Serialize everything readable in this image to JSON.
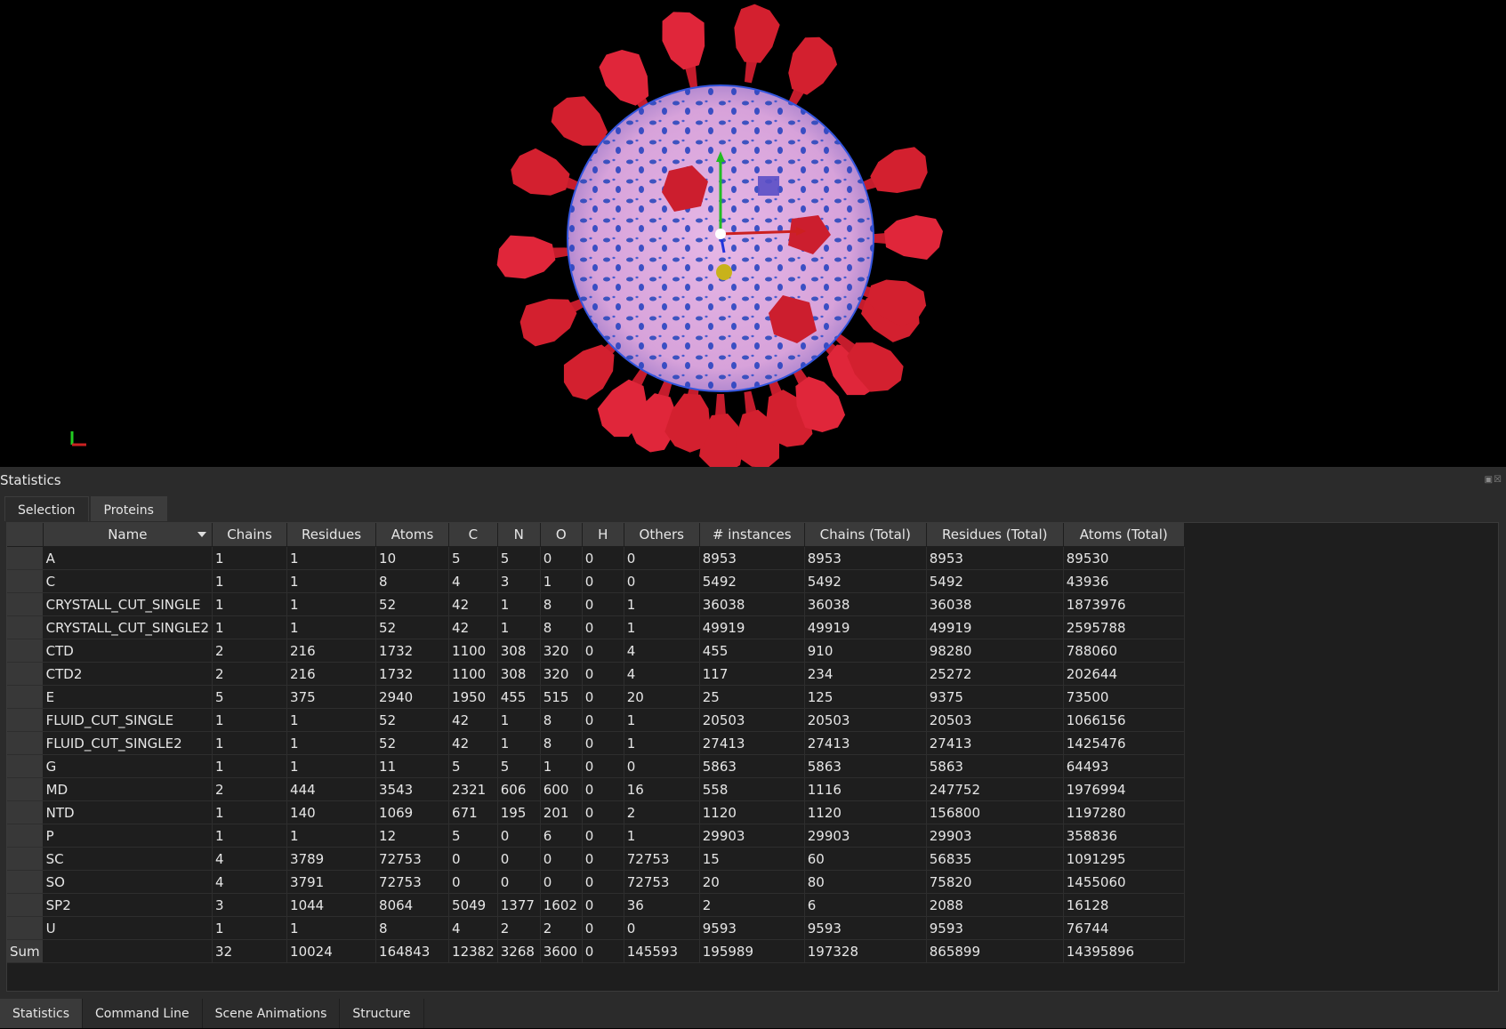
{
  "colors": {
    "background": "#000000",
    "panel": "#2b2b2b",
    "virus_envelope": "#d9a6d9",
    "spike": "#d3202f",
    "membrane_protein": "#1f3fbf"
  },
  "panel": {
    "title": "Statistics"
  },
  "tabs": [
    {
      "label": "Selection"
    },
    {
      "label": "Proteins"
    }
  ],
  "table": {
    "columns": [
      "Name",
      "Chains",
      "Residues",
      "Atoms",
      "C",
      "N",
      "O",
      "H",
      "Others",
      "# instances",
      "Chains (Total)",
      "Residues (Total)",
      "Atoms (Total)"
    ],
    "rows": [
      [
        "A",
        "1",
        "1",
        "10",
        "5",
        "5",
        "0",
        "0",
        "0",
        "8953",
        "8953",
        "8953",
        "89530"
      ],
      [
        "C",
        "1",
        "1",
        "8",
        "4",
        "3",
        "1",
        "0",
        "0",
        "5492",
        "5492",
        "5492",
        "43936"
      ],
      [
        "CRYSTALL_CUT_SINGLE",
        "1",
        "1",
        "52",
        "42",
        "1",
        "8",
        "0",
        "1",
        "36038",
        "36038",
        "36038",
        "1873976"
      ],
      [
        "CRYSTALL_CUT_SINGLE2",
        "1",
        "1",
        "52",
        "42",
        "1",
        "8",
        "0",
        "1",
        "49919",
        "49919",
        "49919",
        "2595788"
      ],
      [
        "CTD",
        "2",
        "216",
        "1732",
        "1100",
        "308",
        "320",
        "0",
        "4",
        "455",
        "910",
        "98280",
        "788060"
      ],
      [
        "CTD2",
        "2",
        "216",
        "1732",
        "1100",
        "308",
        "320",
        "0",
        "4",
        "117",
        "234",
        "25272",
        "202644"
      ],
      [
        "E",
        "5",
        "375",
        "2940",
        "1950",
        "455",
        "515",
        "0",
        "20",
        "25",
        "125",
        "9375",
        "73500"
      ],
      [
        "FLUID_CUT_SINGLE",
        "1",
        "1",
        "52",
        "42",
        "1",
        "8",
        "0",
        "1",
        "20503",
        "20503",
        "20503",
        "1066156"
      ],
      [
        "FLUID_CUT_SINGLE2",
        "1",
        "1",
        "52",
        "42",
        "1",
        "8",
        "0",
        "1",
        "27413",
        "27413",
        "27413",
        "1425476"
      ],
      [
        "G",
        "1",
        "1",
        "11",
        "5",
        "5",
        "1",
        "0",
        "0",
        "5863",
        "5863",
        "5863",
        "64493"
      ],
      [
        "MD",
        "2",
        "444",
        "3543",
        "2321",
        "606",
        "600",
        "0",
        "16",
        "558",
        "1116",
        "247752",
        "1976994"
      ],
      [
        "NTD",
        "1",
        "140",
        "1069",
        "671",
        "195",
        "201",
        "0",
        "2",
        "1120",
        "1120",
        "156800",
        "1197280"
      ],
      [
        "P",
        "1",
        "1",
        "12",
        "5",
        "0",
        "6",
        "0",
        "1",
        "29903",
        "29903",
        "29903",
        "358836"
      ],
      [
        "SC",
        "4",
        "3789",
        "72753",
        "0",
        "0",
        "0",
        "0",
        "72753",
        "15",
        "60",
        "56835",
        "1091295"
      ],
      [
        "SO",
        "4",
        "3791",
        "72753",
        "0",
        "0",
        "0",
        "0",
        "72753",
        "20",
        "80",
        "75820",
        "1455060"
      ],
      [
        "SP2",
        "3",
        "1044",
        "8064",
        "5049",
        "1377",
        "1602",
        "0",
        "36",
        "2",
        "6",
        "2088",
        "16128"
      ],
      [
        "U",
        "1",
        "1",
        "8",
        "4",
        "2",
        "2",
        "0",
        "0",
        "9593",
        "9593",
        "9593",
        "76744"
      ]
    ],
    "sum": {
      "label": "Sum",
      "values": [
        "",
        "32",
        "10024",
        "164843",
        "12382",
        "3268",
        "3600",
        "0",
        "145593",
        "195989",
        "197328",
        "865899",
        "14395896"
      ]
    }
  },
  "bottom_tabs": [
    {
      "label": "Statistics"
    },
    {
      "label": "Command Line"
    },
    {
      "label": "Scene Animations"
    },
    {
      "label": "Structure"
    }
  ]
}
